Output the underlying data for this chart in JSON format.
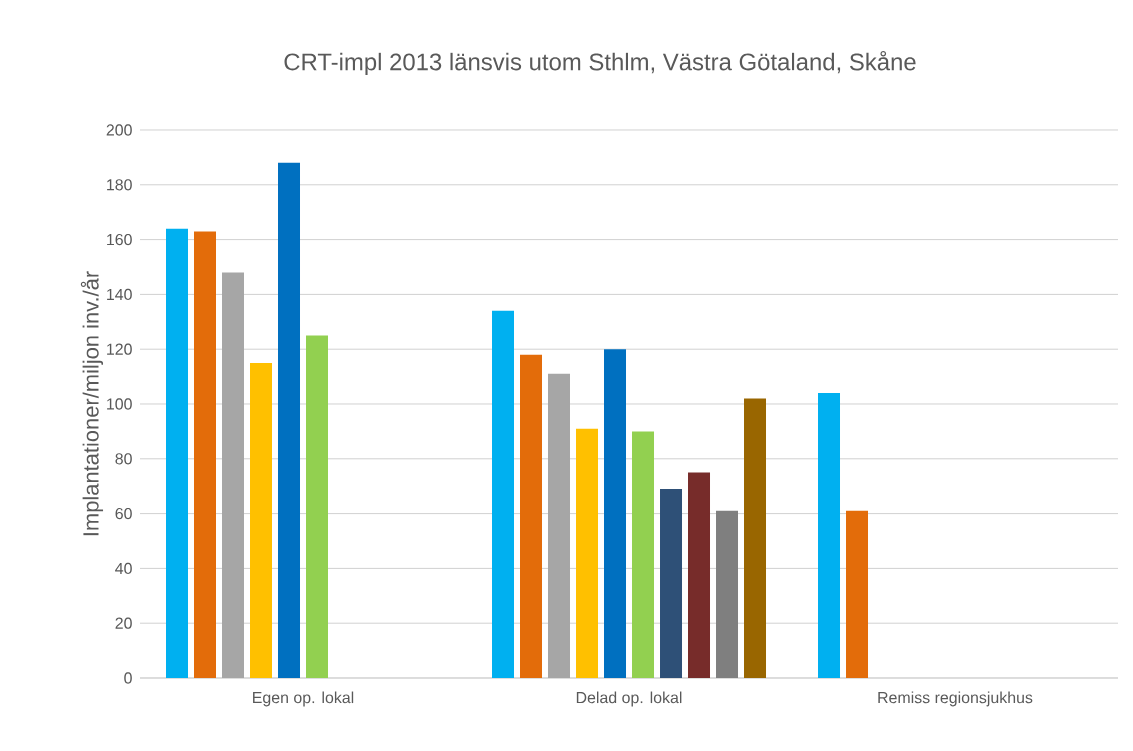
{
  "chart_data": {
    "type": "bar",
    "title": "CRT-impl 2013 länsvis utom Sthlm, Västra Götaland, Skåne",
    "ylabel": "Implantationer/miljon inv./år",
    "categories": [
      "Egen op. lokal",
      "Delad op. lokal",
      "Remiss regionsjukhus"
    ],
    "series": [
      {
        "color": "#00b0f0",
        "values": [
          164,
          134,
          104
        ]
      },
      {
        "color": "#e36c0a",
        "values": [
          163,
          118,
          61
        ]
      },
      {
        "color": "#a6a6a6",
        "values": [
          148,
          111,
          null
        ]
      },
      {
        "color": "#ffc000",
        "values": [
          115,
          91,
          null
        ]
      },
      {
        "color": "#0070c0",
        "values": [
          188,
          120,
          null
        ]
      },
      {
        "color": "#92d050",
        "values": [
          125,
          90,
          null
        ]
      },
      {
        "color": "#2e5077",
        "values": [
          null,
          69,
          null
        ]
      },
      {
        "color": "#772c2a",
        "values": [
          null,
          75,
          null
        ]
      },
      {
        "color": "#7f7f7f",
        "values": [
          null,
          61,
          null
        ]
      },
      {
        "color": "#996600",
        "values": [
          null,
          102,
          null
        ]
      }
    ],
    "ylim": [
      0,
      200
    ],
    "yticks": [
      0,
      20,
      40,
      60,
      80,
      100,
      120,
      140,
      160,
      180,
      200
    ],
    "grid": "y"
  }
}
